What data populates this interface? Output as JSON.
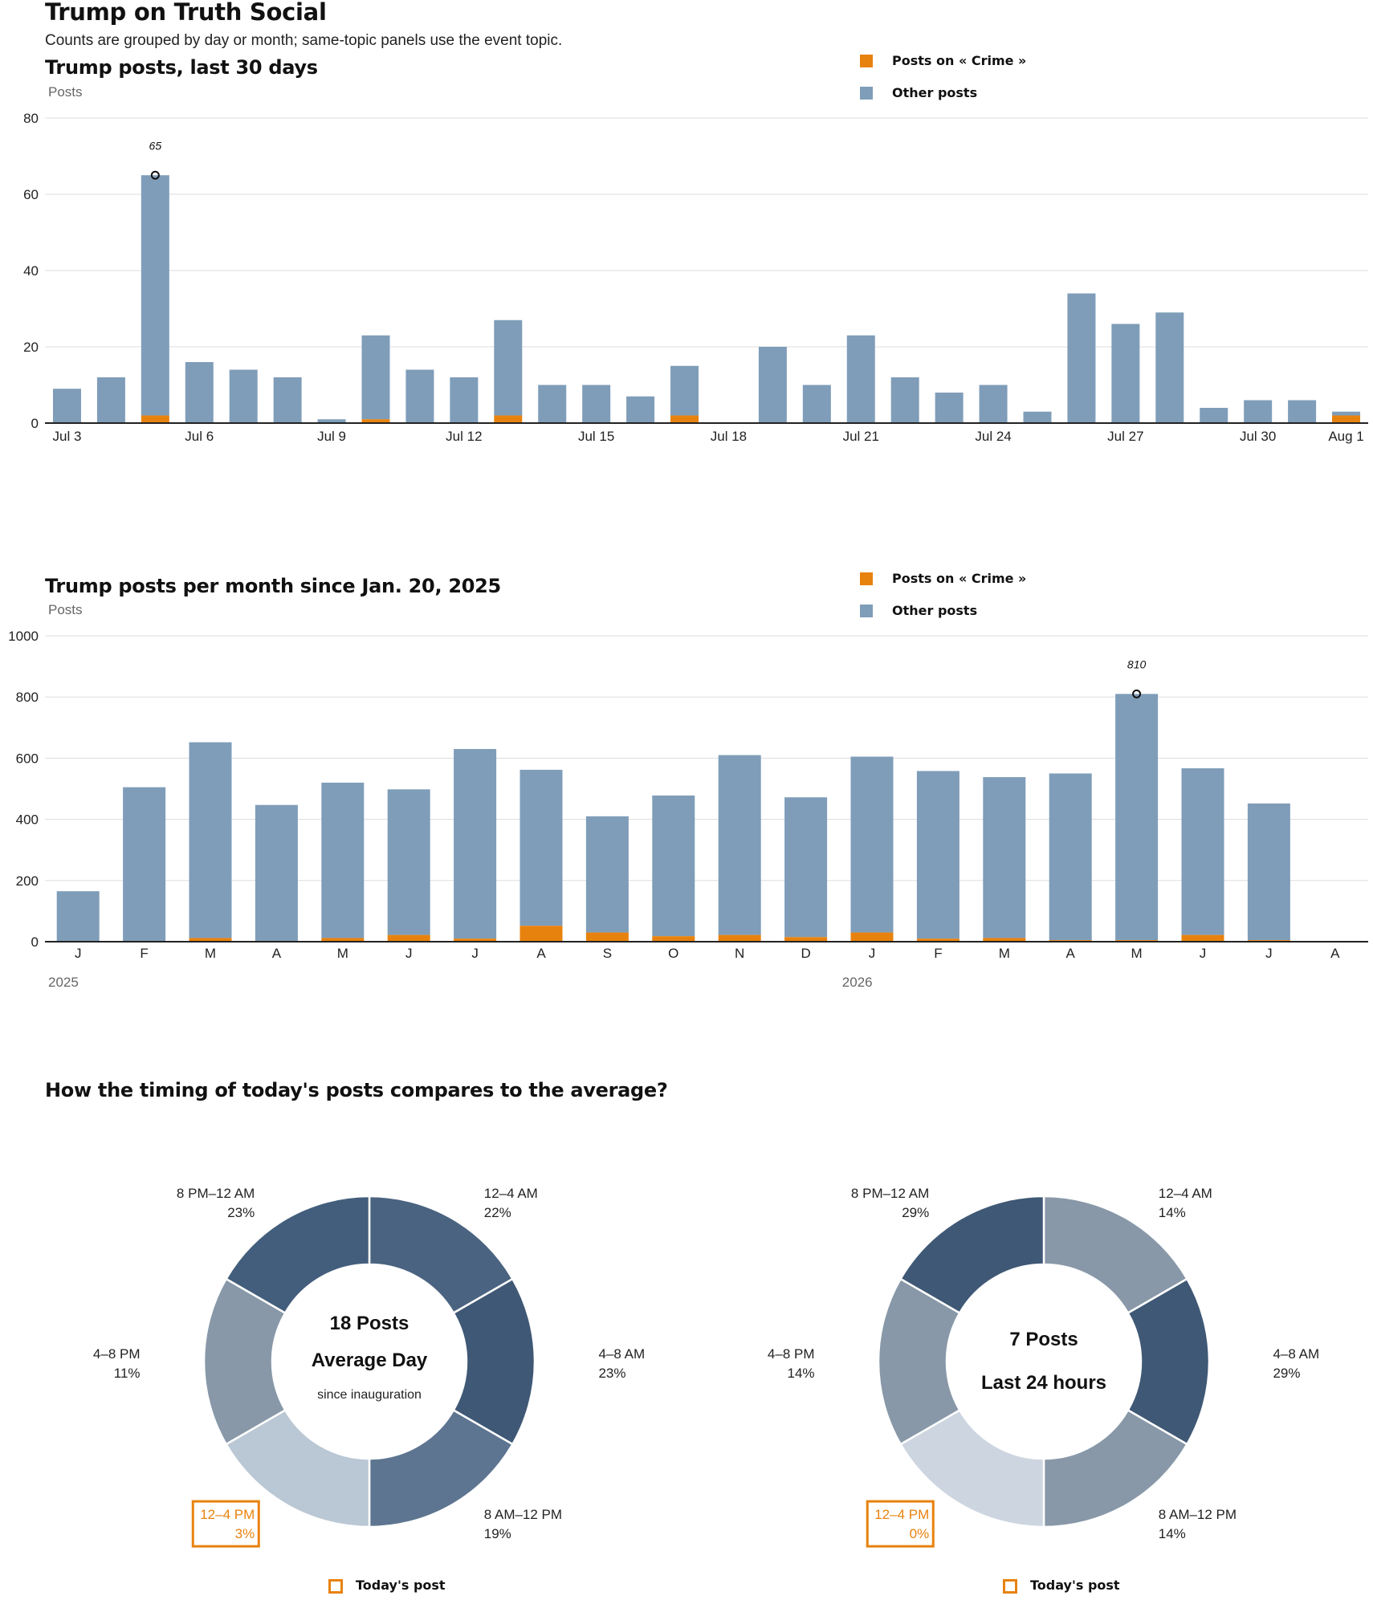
{
  "page": {
    "title": "Trump on Truth Social",
    "subtitle": "Counts are grouped by day or month; same-topic panels use the event topic."
  },
  "colors": {
    "topic": "#e8820e",
    "other": "#7f9db9",
    "axis": "#222222",
    "grid": "#dddddd"
  },
  "legend": {
    "topic_label": "Posts on « Crime »",
    "other_label": "Other posts"
  },
  "chart_data": [
    {
      "type": "bar",
      "title": "Trump posts, last 30 days",
      "ylabel": "Posts",
      "ylim": [
        0,
        80
      ],
      "yticks": [
        0,
        20,
        40,
        60,
        80
      ],
      "grid": true,
      "legend_position": "top-right",
      "categories": [
        "Jul 3",
        "Jul 4",
        "Jul 5",
        "Jul 6",
        "Jul 7",
        "Jul 8",
        "Jul 9",
        "Jul 10",
        "Jul 11",
        "Jul 12",
        "Jul 13",
        "Jul 14",
        "Jul 15",
        "Jul 16",
        "Jul 17",
        "Jul 18",
        "Jul 19",
        "Jul 20",
        "Jul 21",
        "Jul 22",
        "Jul 23",
        "Jul 24",
        "Jul 25",
        "Jul 26",
        "Jul 27",
        "Jul 28",
        "Jul 29",
        "Jul 30",
        "Jul 31",
        "Aug 1"
      ],
      "tick_labels": [
        {
          "index": 0,
          "label": "Jul 3"
        },
        {
          "index": 3,
          "label": "Jul 6"
        },
        {
          "index": 6,
          "label": "Jul 9"
        },
        {
          "index": 9,
          "label": "Jul 12"
        },
        {
          "index": 12,
          "label": "Jul 15"
        },
        {
          "index": 15,
          "label": "Jul 18"
        },
        {
          "index": 18,
          "label": "Jul 21"
        },
        {
          "index": 21,
          "label": "Jul 24"
        },
        {
          "index": 24,
          "label": "Jul 27"
        },
        {
          "index": 27,
          "label": "Jul 30"
        },
        {
          "index": 29,
          "label": "Aug 1"
        }
      ],
      "series": [
        {
          "name": "Posts on « Crime »",
          "values": [
            0,
            0,
            2,
            0,
            0,
            0,
            0,
            1,
            0,
            0,
            2,
            0,
            0,
            0,
            2,
            0,
            0,
            0,
            0,
            0,
            0,
            0,
            0,
            0,
            0,
            0,
            0,
            0,
            0,
            2
          ]
        },
        {
          "name": "Other posts",
          "values": [
            9,
            12,
            63,
            16,
            14,
            12,
            1,
            22,
            14,
            12,
            25,
            10,
            10,
            7,
            13,
            0,
            20,
            10,
            23,
            12,
            8,
            10,
            3,
            34,
            26,
            29,
            4,
            6,
            6,
            1
          ]
        }
      ],
      "annotation": {
        "index": 2,
        "value": 65,
        "label": "65"
      }
    },
    {
      "type": "bar",
      "title": "Trump posts per month since Jan. 20, 2025",
      "ylabel": "Posts",
      "ylim": [
        0,
        1000
      ],
      "yticks": [
        0,
        200,
        400,
        600,
        800,
        1000
      ],
      "grid": true,
      "legend_position": "top-right",
      "categories": [
        "J",
        "F",
        "M",
        "A",
        "M",
        "J",
        "J",
        "A",
        "S",
        "O",
        "N",
        "D",
        "J",
        "F",
        "M",
        "A",
        "M",
        "J",
        "J",
        "A"
      ],
      "year_labels": [
        {
          "index": 0,
          "label": "2025"
        },
        {
          "index": 12,
          "label": "2026"
        }
      ],
      "series": [
        {
          "name": "Posts on « Crime »",
          "values": [
            0,
            0,
            12,
            0,
            12,
            22,
            10,
            52,
            30,
            18,
            22,
            15,
            30,
            10,
            12,
            5,
            5,
            22,
            5,
            0
          ]
        },
        {
          "name": "Other posts",
          "values": [
            165,
            505,
            640,
            447,
            508,
            476,
            620,
            510,
            380,
            460,
            588,
            457,
            575,
            548,
            526,
            545,
            805,
            545,
            447,
            0
          ]
        }
      ],
      "annotation": {
        "index": 16,
        "value": 810,
        "label": "810"
      }
    },
    {
      "type": "pie",
      "variant": "donut",
      "center_lines": [
        "18 Posts",
        "Average Day",
        "since inauguration"
      ],
      "slices": [
        {
          "label": "12–4 AM",
          "value": 22,
          "text": "22%",
          "color": "#4a6380"
        },
        {
          "label": "4–8 AM",
          "value": 23,
          "text": "23%",
          "color": "#3f5875"
        },
        {
          "label": "8 AM–12 PM",
          "value": 19,
          "text": "19%",
          "color": "#5d7590"
        },
        {
          "label": "12–4 PM",
          "value": 3,
          "text": "3%",
          "color": "#bac7d4",
          "highlight": true
        },
        {
          "label": "4–8 PM",
          "value": 11,
          "text": "11%",
          "color": "#8898a8"
        },
        {
          "label": "8 PM–12 AM",
          "value": 23,
          "text": "23%",
          "color": "#435e7c"
        }
      ]
    },
    {
      "type": "pie",
      "variant": "donut",
      "center_lines": [
        "7 Posts",
        "Last 24 hours"
      ],
      "slices": [
        {
          "label": "12–4 AM",
          "value": 14,
          "text": "14%",
          "color": "#8898a8"
        },
        {
          "label": "4–8 AM",
          "value": 29,
          "text": "29%",
          "color": "#3f5875"
        },
        {
          "label": "8 AM–12 PM",
          "value": 14,
          "text": "14%",
          "color": "#8898a8"
        },
        {
          "label": "12–4 PM",
          "value": 0,
          "text": "0%",
          "color": "#cdd6e0",
          "highlight": true
        },
        {
          "label": "4–8 PM",
          "value": 14,
          "text": "14%",
          "color": "#8898a8"
        },
        {
          "label": "8 PM–12 AM",
          "value": 29,
          "text": "29%",
          "color": "#3f5875"
        }
      ]
    }
  ],
  "pie_section": {
    "title": "How the timing of today's posts compares to the average?",
    "today_label": "Today's post"
  }
}
